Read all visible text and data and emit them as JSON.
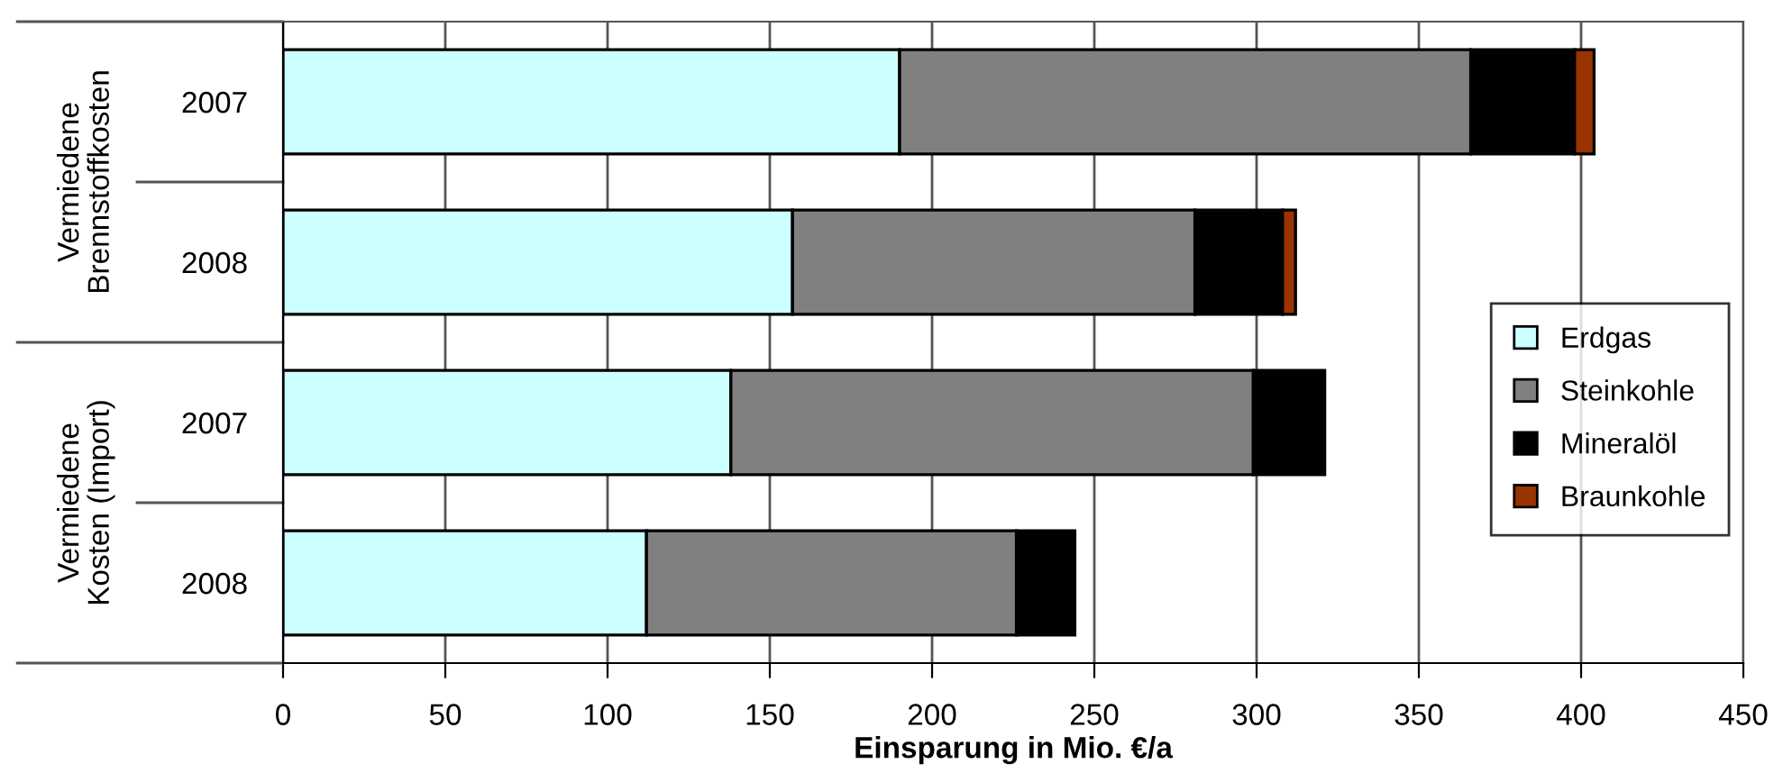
{
  "chart_data": {
    "type": "bar",
    "orientation": "horizontal",
    "stacked": true,
    "categories": [
      "2007",
      "2008",
      "2007",
      "2008"
    ],
    "series": [
      {
        "name": "Erdgas",
        "color": "#ccffff",
        "values": [
          190,
          157,
          138,
          112
        ]
      },
      {
        "name": "Steinkohle",
        "color": "#808080",
        "values": [
          176,
          124,
          161,
          114
        ]
      },
      {
        "name": "Mineralöl",
        "color": "#000000",
        "values": [
          32,
          27,
          22,
          18
        ]
      },
      {
        "name": "Braunkohle",
        "color": "#993300",
        "values": [
          6,
          4,
          null,
          null
        ]
      }
    ],
    "xlabel": "Einsparung in Mio. €/a",
    "xlim": [
      0,
      450
    ],
    "xticks": [
      0,
      50,
      100,
      150,
      200,
      250,
      300,
      350,
      400,
      450
    ],
    "grid": "x",
    "legend": "right",
    "annotations": [
      "Vermiedene Brennstoffkosten",
      "Vermiedene Kosten (Import)"
    ]
  }
}
